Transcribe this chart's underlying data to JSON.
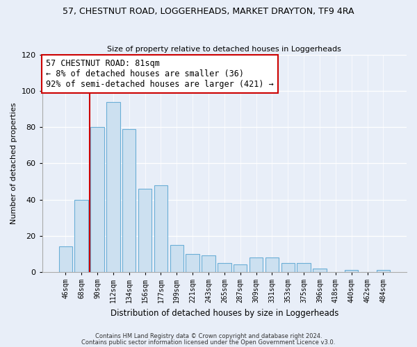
{
  "title": "57, CHESTNUT ROAD, LOGGERHEADS, MARKET DRAYTON, TF9 4RA",
  "subtitle": "Size of property relative to detached houses in Loggerheads",
  "xlabel": "Distribution of detached houses by size in Loggerheads",
  "ylabel": "Number of detached properties",
  "bar_labels": [
    "46sqm",
    "68sqm",
    "90sqm",
    "112sqm",
    "134sqm",
    "156sqm",
    "177sqm",
    "199sqm",
    "221sqm",
    "243sqm",
    "265sqm",
    "287sqm",
    "309sqm",
    "331sqm",
    "353sqm",
    "375sqm",
    "396sqm",
    "418sqm",
    "440sqm",
    "462sqm",
    "484sqm"
  ],
  "bar_values": [
    14,
    40,
    80,
    94,
    79,
    46,
    48,
    15,
    10,
    9,
    5,
    4,
    8,
    8,
    5,
    5,
    2,
    0,
    1,
    0,
    1
  ],
  "bar_color": "#cce0f0",
  "bar_edge_color": "#6aaed6",
  "vline_color": "#cc0000",
  "annotation_text": "57 CHESTNUT ROAD: 81sqm\n← 8% of detached houses are smaller (36)\n92% of semi-detached houses are larger (421) →",
  "annotation_box_color": "#ffffff",
  "annotation_box_edge": "#cc0000",
  "ylim": [
    0,
    120
  ],
  "yticks": [
    0,
    20,
    40,
    60,
    80,
    100,
    120
  ],
  "footer1": "Contains HM Land Registry data © Crown copyright and database right 2024.",
  "footer2": "Contains public sector information licensed under the Open Government Licence v3.0.",
  "bg_color": "#e8eef8",
  "grid_color": "#ffffff",
  "title_fontsize": 9,
  "subtitle_fontsize": 8,
  "ylabel_fontsize": 8,
  "xlabel_fontsize": 8.5
}
